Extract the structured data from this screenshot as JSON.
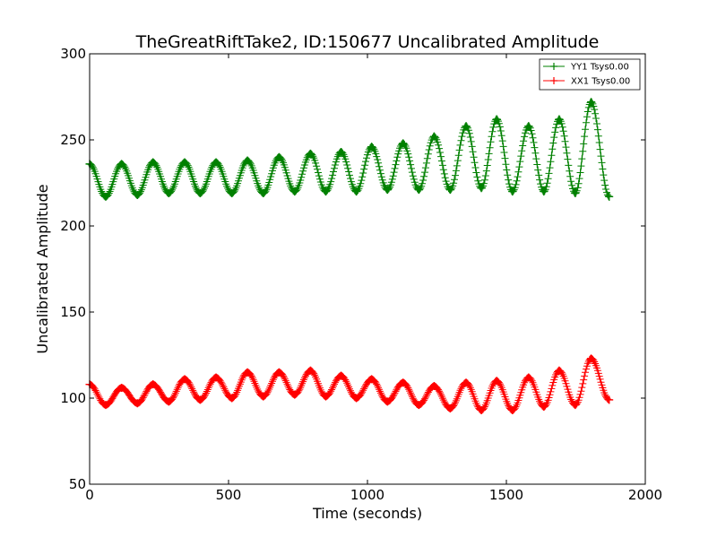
{
  "chart_data": {
    "type": "line",
    "title": "TheGreatRiftTake2, ID:150677 Uncalibrated Amplitude",
    "xlabel": "Time (seconds)",
    "ylabel": "Uncalibrated Amplitude",
    "xlim": [
      0,
      2000
    ],
    "ylim": [
      50,
      300
    ],
    "xticks": [
      0,
      500,
      1000,
      1500,
      2000
    ],
    "yticks": [
      50,
      100,
      150,
      200,
      250,
      300
    ],
    "grid": false,
    "legend_position": "top-right",
    "marker": "+",
    "x_range": [
      0,
      1870
    ],
    "series": [
      {
        "name": "YY1 Tsys0.00",
        "color": "#008000",
        "peak_times": [
          0,
          115,
          228,
          342,
          455,
          568,
          682,
          795,
          905,
          1015,
          1128,
          1240,
          1355,
          1465,
          1580,
          1690,
          1805
        ],
        "peak_values": [
          236,
          236,
          237,
          237,
          237,
          238,
          240,
          242,
          243,
          246,
          248,
          252,
          258,
          262,
          258,
          262,
          272
        ],
        "trough_times": [
          58,
          172,
          285,
          398,
          512,
          625,
          738,
          850,
          960,
          1072,
          1185,
          1298,
          1410,
          1522,
          1635,
          1748,
          1870
        ],
        "trough_values": [
          217,
          218,
          219,
          219,
          219,
          219,
          220,
          220,
          220,
          221,
          221,
          221,
          222,
          220,
          220,
          219,
          217
        ]
      },
      {
        "name": "XX1 Tsys0.00",
        "color": "#ff0000",
        "peak_times": [
          0,
          115,
          228,
          342,
          455,
          568,
          682,
          795,
          905,
          1015,
          1128,
          1240,
          1355,
          1465,
          1580,
          1690,
          1805
        ],
        "peak_values": [
          108,
          106,
          108,
          111,
          112,
          115,
          115,
          116,
          113,
          111,
          109,
          107,
          109,
          110,
          112,
          116,
          123
        ],
        "trough_times": [
          58,
          172,
          285,
          398,
          512,
          625,
          738,
          850,
          960,
          1072,
          1185,
          1298,
          1410,
          1522,
          1635,
          1748,
          1870
        ],
        "trough_values": [
          96,
          97,
          98,
          99,
          100,
          101,
          102,
          101,
          100,
          98,
          96,
          94,
          93,
          93,
          95,
          96,
          99
        ]
      }
    ]
  }
}
